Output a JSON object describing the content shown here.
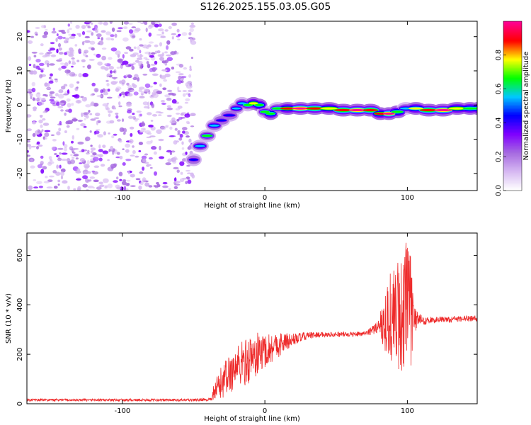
{
  "title": "S126.2025.155.03.05.G05",
  "colors": {
    "snr_line": "#ee2a2a",
    "colormap": [
      "#ffffff",
      "#d6b8f2",
      "#a66ae0",
      "#7f00ff",
      "#0000ff",
      "#00c8ff",
      "#00ff00",
      "#ffff00",
      "#ff0000",
      "#ff0090"
    ]
  },
  "chart_data": [
    {
      "type": "heatmap",
      "xlabel": "Height of straight line (km)",
      "ylabel": "Frequency (Hz)",
      "xlim": [
        -167,
        149
      ],
      "ylim": [
        -25,
        24.5
      ],
      "x_ticks": [
        -100,
        0,
        100
      ],
      "y_ticks": [
        -20,
        -10,
        0,
        10,
        20
      ],
      "colorbar": {
        "label": "Normalized spectral amplitude",
        "range": [
          0,
          1
        ],
        "ticks": [
          0.0,
          0.2,
          0.4,
          0.6,
          0.8
        ]
      },
      "noise_region_x": [
        -167,
        -50
      ],
      "ridge": [
        {
          "x": -52,
          "y": -16,
          "a": 0.35
        },
        {
          "x": -48,
          "y": -12,
          "a": 0.5
        },
        {
          "x": -43,
          "y": -9,
          "a": 0.55
        },
        {
          "x": -38,
          "y": -6,
          "a": 0.45
        },
        {
          "x": -33,
          "y": -4.5,
          "a": 0.35
        },
        {
          "x": -28,
          "y": -3,
          "a": 0.35
        },
        {
          "x": -22,
          "y": -1,
          "a": 0.4
        },
        {
          "x": -18,
          "y": 0.5,
          "a": 0.4
        },
        {
          "x": -14,
          "y": 0,
          "a": 0.55
        },
        {
          "x": -10,
          "y": 0.5,
          "a": 0.7
        },
        {
          "x": -6,
          "y": 0,
          "a": 0.6
        },
        {
          "x": -2,
          "y": -2,
          "a": 0.55
        },
        {
          "x": 2,
          "y": -2.5,
          "a": 0.6
        },
        {
          "x": 6,
          "y": -1,
          "a": 0.55
        },
        {
          "x": 12,
          "y": -1,
          "a": 0.75
        },
        {
          "x": 20,
          "y": -1,
          "a": 0.85
        },
        {
          "x": 30,
          "y": -1,
          "a": 0.8
        },
        {
          "x": 40,
          "y": -1,
          "a": 0.7
        },
        {
          "x": 50,
          "y": -1.5,
          "a": 0.8
        },
        {
          "x": 60,
          "y": -1.5,
          "a": 0.85
        },
        {
          "x": 70,
          "y": -1.5,
          "a": 0.8
        },
        {
          "x": 78,
          "y": -2.5,
          "a": 0.75
        },
        {
          "x": 84,
          "y": -2.5,
          "a": 0.85
        },
        {
          "x": 90,
          "y": -2,
          "a": 0.6
        },
        {
          "x": 96,
          "y": -1,
          "a": 0.5
        },
        {
          "x": 102,
          "y": -1,
          "a": 0.65
        },
        {
          "x": 110,
          "y": -1.5,
          "a": 0.8
        },
        {
          "x": 120,
          "y": -1.5,
          "a": 0.85
        },
        {
          "x": 130,
          "y": -1,
          "a": 0.7
        },
        {
          "x": 140,
          "y": -1,
          "a": 0.6
        },
        {
          "x": 148,
          "y": -1,
          "a": 0.6
        }
      ]
    },
    {
      "type": "line",
      "xlabel": "Height of straight line (km)",
      "ylabel": "SNR (10 * v/v)",
      "xlim": [
        -167,
        149
      ],
      "ylim": [
        0,
        690
      ],
      "x_ticks": [
        -100,
        0,
        100
      ],
      "y_ticks": [
        0,
        200,
        400,
        600
      ],
      "series": [
        {
          "x": [
            -167,
            -50,
            -37,
            -36,
            -30,
            -20,
            -10,
            -5,
            0,
            10,
            20,
            30,
            40,
            50,
            60,
            70,
            77,
            80,
            85,
            88,
            92,
            95,
            97,
            100,
            102,
            105,
            108,
            112,
            120,
            130,
            140,
            149
          ],
          "y": [
            15,
            15,
            18,
            40,
            90,
            150,
            180,
            200,
            215,
            240,
            260,
            275,
            280,
            280,
            280,
            285,
            300,
            320,
            340,
            350,
            350,
            370,
            380,
            380,
            360,
            340,
            345,
            335,
            340,
            340,
            345,
            345
          ],
          "amplitude": [
            5,
            5,
            6,
            40,
            70,
            90,
            100,
            90,
            70,
            50,
            25,
            15,
            10,
            10,
            10,
            10,
            20,
            30,
            150,
            200,
            200,
            260,
            300,
            330,
            250,
            60,
            20,
            15,
            12,
            12,
            12,
            12
          ]
        }
      ]
    }
  ]
}
